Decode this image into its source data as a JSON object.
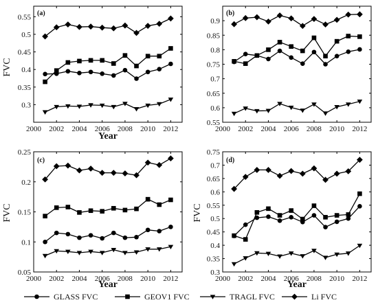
{
  "chart_data": [
    {
      "type": "line",
      "label": "(a)",
      "xlabel": "Year",
      "ylabel": "FVC",
      "xlim": [
        2000,
        2013
      ],
      "ylim": [
        0.25,
        0.58
      ],
      "xticks": [
        2000,
        2002,
        2004,
        2006,
        2008,
        2010,
        2012
      ],
      "yticks": [
        0.3,
        0.35,
        0.4,
        0.45,
        0.5,
        0.55
      ],
      "ytick_labels": [
        "0.3",
        "0.35",
        "0.4",
        "0.45",
        "0.5",
        "0.55"
      ],
      "x": [
        2001,
        2002,
        2003,
        2004,
        2005,
        2006,
        2007,
        2008,
        2009,
        2010,
        2011,
        2012
      ],
      "series": [
        {
          "name": "GLASS FVC",
          "marker": "circle",
          "values": [
            0.387,
            0.388,
            0.395,
            0.39,
            0.393,
            0.388,
            0.383,
            0.398,
            0.374,
            0.393,
            0.401,
            0.416
          ]
        },
        {
          "name": "GEOV1 FVC",
          "marker": "square",
          "values": [
            0.365,
            0.397,
            0.42,
            0.424,
            0.426,
            0.426,
            0.417,
            0.44,
            0.41,
            0.438,
            0.438,
            0.46
          ]
        },
        {
          "name": "TRAGL FVC",
          "marker": "triangle",
          "values": [
            0.279,
            0.294,
            0.296,
            0.295,
            0.299,
            0.298,
            0.294,
            0.303,
            0.288,
            0.298,
            0.302,
            0.315
          ]
        },
        {
          "name": "Li FVC",
          "marker": "diamond",
          "values": [
            0.494,
            0.52,
            0.528,
            0.521,
            0.522,
            0.519,
            0.517,
            0.525,
            0.504,
            0.524,
            0.53,
            0.545
          ]
        }
      ]
    },
    {
      "type": "line",
      "label": "(b)",
      "xlabel": "",
      "ylabel": "",
      "xlim": [
        2000,
        2013
      ],
      "ylim": [
        0.55,
        0.95
      ],
      "xticks": [
        2000,
        2002,
        2004,
        2006,
        2008,
        2010,
        2012
      ],
      "yticks": [
        0.55,
        0.6,
        0.65,
        0.7,
        0.75,
        0.8,
        0.85,
        0.9
      ],
      "ytick_labels": [
        "0.55",
        "0.6",
        "0.65",
        "0.7",
        "0.75",
        "0.8",
        "0.85",
        "0.9"
      ],
      "x": [
        2001,
        2002,
        2003,
        2004,
        2005,
        2006,
        2007,
        2008,
        2009,
        2010,
        2011,
        2012
      ],
      "series": [
        {
          "name": "GLASS FVC",
          "marker": "circle",
          "values": [
            0.758,
            0.785,
            0.78,
            0.768,
            0.796,
            0.773,
            0.752,
            0.792,
            0.75,
            0.778,
            0.793,
            0.801
          ]
        },
        {
          "name": "GEOV1 FVC",
          "marker": "square",
          "values": [
            0.76,
            0.752,
            0.78,
            0.8,
            0.826,
            0.811,
            0.796,
            0.841,
            0.778,
            0.829,
            0.847,
            0.845
          ]
        },
        {
          "name": "TRAGL FVC",
          "marker": "triangle",
          "values": [
            0.58,
            0.598,
            0.589,
            0.59,
            0.614,
            0.601,
            0.591,
            0.612,
            0.581,
            0.603,
            0.612,
            0.622
          ]
        },
        {
          "name": "Li FVC",
          "marker": "diamond",
          "values": [
            0.888,
            0.909,
            0.912,
            0.897,
            0.918,
            0.908,
            0.882,
            0.906,
            0.887,
            0.903,
            0.921,
            0.922
          ]
        }
      ]
    },
    {
      "type": "line",
      "label": "(c)",
      "xlabel": "Year",
      "ylabel": "FVC",
      "xlim": [
        2000,
        2013
      ],
      "ylim": [
        0.05,
        0.25
      ],
      "xticks": [
        2000,
        2002,
        2004,
        2006,
        2008,
        2010,
        2012
      ],
      "yticks": [
        0.05,
        0.1,
        0.15,
        0.2,
        0.25
      ],
      "ytick_labels": [
        "0.05",
        "0.1",
        "0.15",
        "0.2",
        "0.25"
      ],
      "x": [
        2001,
        2002,
        2003,
        2004,
        2005,
        2006,
        2007,
        2008,
        2009,
        2010,
        2011,
        2012
      ],
      "series": [
        {
          "name": "GLASS FVC",
          "marker": "circle",
          "values": [
            0.1,
            0.115,
            0.113,
            0.107,
            0.111,
            0.106,
            0.115,
            0.107,
            0.108,
            0.12,
            0.118,
            0.125
          ]
        },
        {
          "name": "GEOV1 FVC",
          "marker": "square",
          "values": [
            0.143,
            0.157,
            0.158,
            0.149,
            0.152,
            0.151,
            0.156,
            0.153,
            0.155,
            0.171,
            0.162,
            0.17
          ]
        },
        {
          "name": "TRAGL FVC",
          "marker": "triangle",
          "values": [
            0.077,
            0.085,
            0.084,
            0.082,
            0.084,
            0.082,
            0.087,
            0.082,
            0.083,
            0.088,
            0.088,
            0.092
          ]
        },
        {
          "name": "Li FVC",
          "marker": "diamond",
          "values": [
            0.204,
            0.226,
            0.227,
            0.219,
            0.222,
            0.215,
            0.215,
            0.214,
            0.211,
            0.232,
            0.228,
            0.239
          ]
        }
      ]
    },
    {
      "type": "line",
      "label": "(d)",
      "xlabel": "Year",
      "ylabel": "FVC",
      "xlim": [
        2000,
        2013
      ],
      "ylim": [
        0.3,
        0.75
      ],
      "xticks": [
        2000,
        2002,
        2004,
        2006,
        2008,
        2010,
        2012
      ],
      "yticks": [
        0.3,
        0.35,
        0.4,
        0.45,
        0.5,
        0.55,
        0.6,
        0.65,
        0.7,
        0.75
      ],
      "ytick_labels": [
        "0.3",
        "0.35",
        "0.4",
        "0.45",
        "0.5",
        "0.55",
        "0.6",
        "0.65",
        "0.7",
        "0.75"
      ],
      "x": [
        2001,
        2002,
        2003,
        2004,
        2005,
        2006,
        2007,
        2008,
        2009,
        2010,
        2011,
        2012
      ],
      "series": [
        {
          "name": "GLASS FVC",
          "marker": "circle",
          "values": [
            0.435,
            0.477,
            0.503,
            0.507,
            0.492,
            0.505,
            0.487,
            0.512,
            0.468,
            0.488,
            0.5,
            0.546
          ]
        },
        {
          "name": "GEOV1 FVC",
          "marker": "square",
          "values": [
            0.436,
            0.422,
            0.523,
            0.537,
            0.512,
            0.53,
            0.498,
            0.548,
            0.505,
            0.512,
            0.515,
            0.593
          ]
        },
        {
          "name": "TRAGL FVC",
          "marker": "triangle",
          "values": [
            0.33,
            0.352,
            0.371,
            0.369,
            0.359,
            0.37,
            0.36,
            0.38,
            0.354,
            0.366,
            0.37,
            0.399
          ]
        },
        {
          "name": "Li FVC",
          "marker": "diamond",
          "values": [
            0.611,
            0.656,
            0.682,
            0.682,
            0.66,
            0.678,
            0.668,
            0.688,
            0.645,
            0.668,
            0.677,
            0.72
          ]
        }
      ]
    }
  ],
  "legend": {
    "placement": "bottom",
    "items": [
      {
        "label": "GLASS FVC",
        "marker": "circle"
      },
      {
        "label": "GEOV1 FVC",
        "marker": "square"
      },
      {
        "label": "TRAGL FVC",
        "marker": "triangle"
      },
      {
        "label": "Li FVC",
        "marker": "diamond"
      }
    ]
  }
}
